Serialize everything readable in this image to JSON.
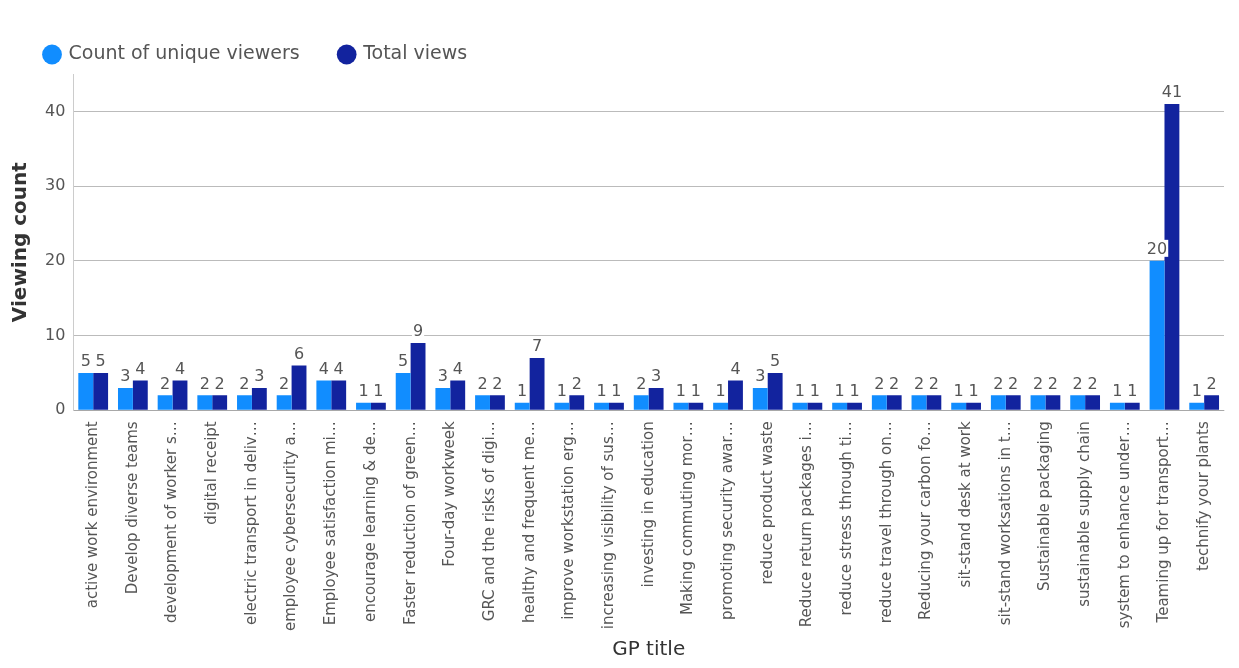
{
  "chart_data": {
    "type": "bar",
    "xlabel": "GP title",
    "ylabel": "Viewing count",
    "categories": [
      "active work environment",
      "Develop diverse teams",
      "development of worker s…",
      "digital receipt",
      "electric transport in deliv…",
      "employee cybersecurity a…",
      "Employee satisfaction mi…",
      "encourage learning & de…",
      "Faster reduction of green…",
      "Four-day workweek",
      "GRC and the risks of digi…",
      "healthy and frequent me…",
      "improve workstation erg…",
      "increasing visibility of sus…",
      "investing in education",
      "Making commuting mor…",
      "promoting security awar…",
      "reduce product waste",
      "Reduce return packages i…",
      "reduce stress through ti…",
      "reduce travel through on…",
      "Reducing your carbon fo…",
      "sit-stand desk at work",
      "sit-stand worksations in t…",
      "Sustainable packaging",
      "sustainable supply chain",
      "system to enhance under…",
      "Teaming up for transport…",
      "technify your plants"
    ],
    "series": [
      {
        "name": "Count of unique viewers",
        "color": "#118dff",
        "values": [
          5,
          3,
          2,
          2,
          2,
          2,
          4,
          1,
          5,
          3,
          2,
          1,
          1,
          1,
          2,
          1,
          1,
          3,
          1,
          1,
          2,
          2,
          1,
          2,
          2,
          2,
          1,
          20,
          1
        ]
      },
      {
        "name": "Total views",
        "color": "#12239e",
        "values": [
          5,
          4,
          4,
          2,
          3,
          6,
          4,
          1,
          9,
          4,
          2,
          7,
          2,
          1,
          3,
          1,
          4,
          5,
          1,
          1,
          2,
          2,
          1,
          2,
          2,
          2,
          1,
          41,
          2
        ]
      }
    ],
    "ylim": [
      0,
      45
    ],
    "yticks": [
      0,
      10,
      20,
      30,
      40
    ],
    "grid": "y",
    "legend": "top left",
    "data_labels": true
  }
}
